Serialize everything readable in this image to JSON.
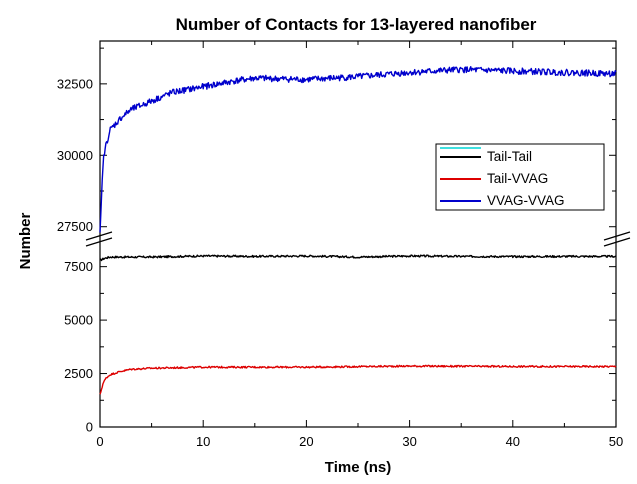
{
  "chart_data": {
    "type": "line",
    "title": "Number of Contacts for 13-layered nanofiber",
    "xlabel": "Time (ns)",
    "ylabel": "Number",
    "xlim": [
      0,
      50
    ],
    "x_ticks": [
      "0",
      "10",
      "20",
      "30",
      "40",
      "50"
    ],
    "axis_break": {
      "lower_range": [
        0,
        8700
      ],
      "upper_range": [
        27000,
        34000
      ]
    },
    "y_ticks_lower": [
      "0",
      "2500",
      "5000",
      "7500"
    ],
    "y_ticks_upper": [
      "27500",
      "30000",
      "32500"
    ],
    "grid": false,
    "legend_position": "right",
    "legend_entries": [
      "Tail-Tail",
      "Tail-VVAG",
      "VVAG-VVAG"
    ],
    "series": [
      {
        "name": "Tail-Tail",
        "color": "#000000",
        "x": [
          0,
          0.5,
          1,
          2,
          5,
          10,
          15,
          20,
          25,
          30,
          35,
          40,
          45,
          50
        ],
        "values": [
          7800,
          7900,
          7950,
          7950,
          7950,
          8000,
          7980,
          8000,
          7950,
          8000,
          7980,
          7970,
          7980,
          7980
        ]
      },
      {
        "name": "Tail-VVAG",
        "color": "#dd0000",
        "x": [
          0,
          0.3,
          0.6,
          1,
          2,
          3,
          5,
          10,
          20,
          30,
          40,
          50
        ],
        "values": [
          1500,
          2050,
          2300,
          2450,
          2600,
          2700,
          2750,
          2800,
          2800,
          2850,
          2830,
          2830
        ]
      },
      {
        "name": "VVAG-VVAG",
        "color": "#0000cc",
        "x": [
          0,
          0.3,
          0.6,
          1,
          2,
          3,
          5,
          7,
          10,
          13,
          15,
          20,
          25,
          30,
          35,
          40,
          45,
          50
        ],
        "values": [
          27200,
          29800,
          30400,
          30900,
          31300,
          31600,
          31900,
          32200,
          32400,
          32600,
          32700,
          32650,
          32750,
          32900,
          33000,
          32950,
          32900,
          32850
        ]
      }
    ]
  },
  "colors": {
    "tail_tail": "#000000",
    "tail_vvag": "#dd0000",
    "vvag_vvag": "#0000cc",
    "legend_swatch": "#40e0e0"
  }
}
